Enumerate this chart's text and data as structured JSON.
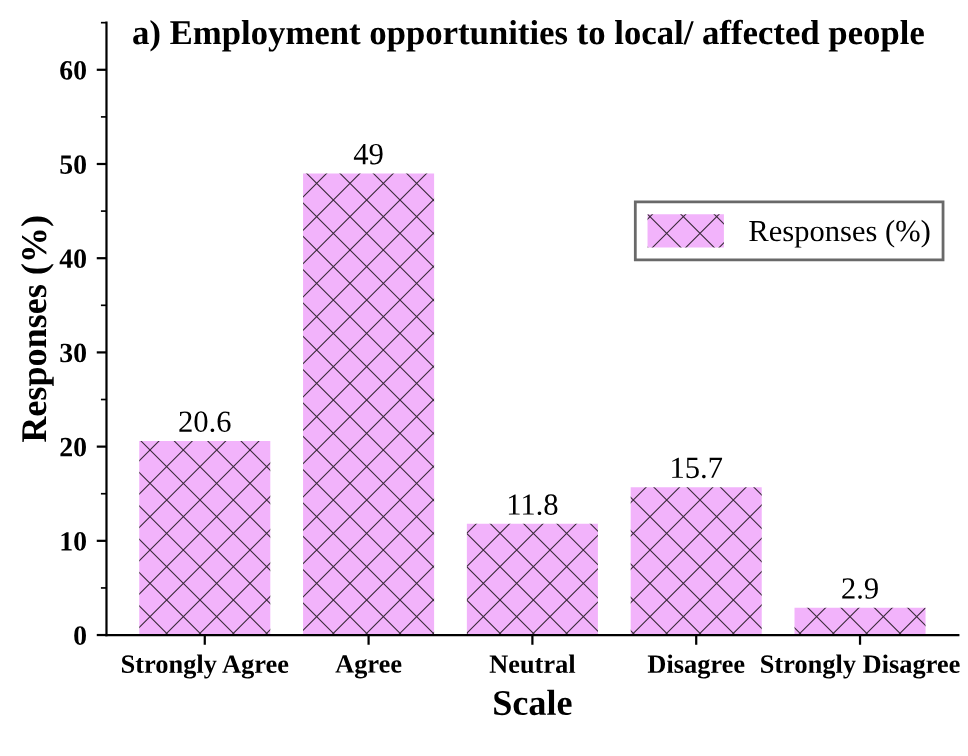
{
  "chart_data": {
    "type": "bar",
    "title": "a) Employment opportunities to local/ affected people",
    "xlabel": "Scale",
    "ylabel": "Responses (%)",
    "categories": [
      "Strongly Agree",
      "Agree",
      "Neutral",
      "Disagree",
      "Strongly Disagree"
    ],
    "series": [
      {
        "name": "Responses (%)",
        "color": "#f2b3fb",
        "values": [
          20.6,
          49,
          11.8,
          15.7,
          2.9
        ]
      }
    ],
    "ylim": [
      0,
      65
    ],
    "yticks": [
      0,
      10,
      20,
      30,
      40,
      50,
      60
    ],
    "data_labels": true,
    "legend": "right",
    "grid": false
  }
}
